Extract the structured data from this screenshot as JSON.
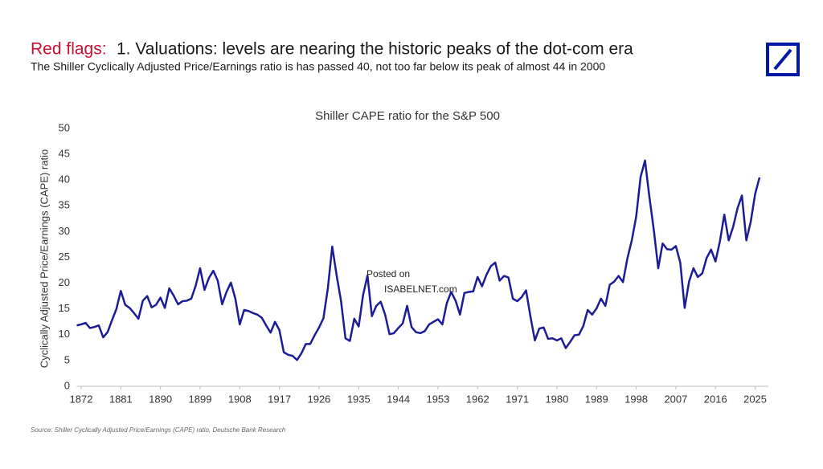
{
  "header": {
    "flag": "Red flags:",
    "title": "1. Valuations: levels are nearing the historic peaks of the dot-com era",
    "subtitle": "The Shiller Cyclically Adjusted Price/Earnings ratio is has passed 40, not too far below its peak of almost 44 in 2000"
  },
  "chart_data": {
    "type": "line",
    "title": "Shiller CAPE ratio for the S&P 500",
    "y_label": "Cyclically Adjusted Price/Earnings (CAPE) ratio",
    "x": [
      1871,
      1872,
      1873,
      1874,
      1875,
      1876,
      1877,
      1878,
      1879,
      1880,
      1881,
      1882,
      1883,
      1884,
      1885,
      1886,
      1887,
      1888,
      1889,
      1890,
      1891,
      1892,
      1893,
      1894,
      1895,
      1896,
      1897,
      1898,
      1899,
      1900,
      1901,
      1902,
      1903,
      1904,
      1905,
      1906,
      1907,
      1908,
      1909,
      1910,
      1911,
      1912,
      1913,
      1914,
      1915,
      1916,
      1917,
      1918,
      1919,
      1920,
      1921,
      1922,
      1923,
      1924,
      1925,
      1926,
      1927,
      1928,
      1929,
      1930,
      1931,
      1932,
      1933,
      1934,
      1935,
      1936,
      1937,
      1938,
      1939,
      1940,
      1941,
      1942,
      1943,
      1944,
      1945,
      1946,
      1947,
      1948,
      1949,
      1950,
      1951,
      1952,
      1953,
      1954,
      1955,
      1956,
      1957,
      1958,
      1959,
      1960,
      1961,
      1962,
      1963,
      1964,
      1965,
      1966,
      1967,
      1968,
      1969,
      1970,
      1971,
      1972,
      1973,
      1974,
      1975,
      1976,
      1977,
      1978,
      1979,
      1980,
      1981,
      1982,
      1983,
      1984,
      1985,
      1986,
      1987,
      1988,
      1989,
      1990,
      1991,
      1992,
      1993,
      1994,
      1995,
      1996,
      1997,
      1998,
      1999,
      2000,
      2001,
      2002,
      2003,
      2004,
      2005,
      2006,
      2007,
      2008,
      2009,
      2010,
      2011,
      2012,
      2013,
      2014,
      2015,
      2016,
      2017,
      2018,
      2019,
      2020,
      2021,
      2022,
      2023,
      2024,
      2025,
      2026
    ],
    "series": [
      {
        "name": "Shiller CAPE",
        "color": "#1c1c96",
        "values": [
          11.8,
          12.0,
          12.3,
          11.3,
          11.5,
          11.8,
          9.5,
          10.5,
          12.8,
          15.0,
          18.5,
          15.8,
          15.2,
          14.2,
          13.1,
          16.6,
          17.5,
          15.3,
          15.8,
          17.2,
          15.2,
          19.0,
          17.6,
          15.9,
          16.5,
          16.6,
          17.0,
          19.5,
          22.9,
          18.7,
          21.0,
          22.4,
          20.5,
          15.9,
          18.3,
          20.1,
          17.0,
          12.0,
          14.8,
          14.6,
          14.2,
          13.9,
          13.3,
          11.8,
          10.4,
          12.5,
          10.9,
          6.6,
          6.1,
          5.9,
          5.1,
          6.4,
          8.2,
          8.2,
          9.9,
          11.4,
          13.2,
          19.0,
          27.1,
          21.5,
          16.5,
          9.3,
          8.8,
          13.1,
          11.6,
          17.7,
          21.5,
          13.6,
          15.6,
          16.4,
          13.9,
          10.1,
          10.3,
          11.3,
          12.2,
          15.6,
          11.5,
          10.5,
          10.3,
          10.7,
          12.0,
          12.5,
          13.0,
          12.0,
          16.1,
          18.3,
          16.6,
          13.9,
          18.1,
          18.3,
          18.4,
          21.2,
          19.4,
          21.6,
          23.3,
          24.0,
          20.5,
          21.4,
          21.1,
          17.0,
          16.5,
          17.3,
          18.6,
          13.5,
          8.9,
          11.2,
          11.4,
          9.2,
          9.3,
          8.9,
          9.3,
          7.4,
          8.6,
          9.9,
          10.0,
          11.7,
          14.8,
          13.9,
          15.1,
          17.0,
          15.6,
          19.7,
          20.3,
          21.4,
          20.2,
          24.8,
          28.3,
          32.9,
          40.6,
          43.8,
          36.7,
          30.3,
          22.9,
          27.7,
          26.6,
          26.5,
          27.2,
          24.0,
          15.2,
          20.3,
          22.9,
          21.2,
          21.9,
          24.9,
          26.5,
          24.2,
          28.1,
          33.3,
          28.3,
          30.9,
          34.5,
          37.0,
          28.3,
          31.9,
          37.3,
          40.5
        ]
      }
    ],
    "xlim": [
      1871,
      2028
    ],
    "ylim": [
      0,
      50
    ],
    "xticks": [
      1872,
      1881,
      1890,
      1899,
      1908,
      1917,
      1926,
      1935,
      1944,
      1953,
      1962,
      1971,
      1980,
      1989,
      1998,
      2007,
      2016,
      2025
    ],
    "yticks": [
      0,
      5,
      10,
      15,
      20,
      25,
      30,
      35,
      40,
      45,
      50
    ],
    "grid": false
  },
  "watermark": [
    "Posted on",
    "ISABELNET.com"
  ],
  "source": "Source: Shiller Cyclically Adjusted Price/Earnings (CAPE) ratio, Deutsche Bank Research"
}
